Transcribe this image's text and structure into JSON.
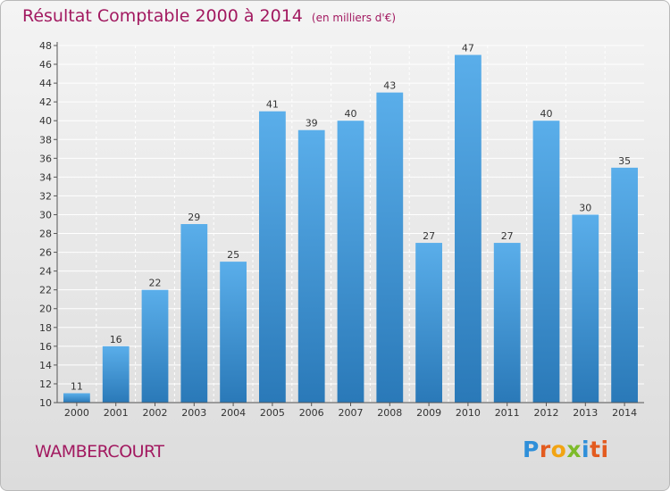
{
  "header": {
    "title": "Résultat Comptable 2000 à 2014",
    "subtitle": "(en milliers d'€)"
  },
  "commune": "WAMBERCOURT",
  "logo": {
    "letters": [
      "P",
      "r",
      "o",
      "x",
      "i",
      "ti"
    ]
  },
  "colors": {
    "title": "#a21960",
    "bar_top": "#5aaeea",
    "bar_bottom": "#2a79b8",
    "grid": "#ffffff"
  },
  "chart_data": {
    "type": "bar",
    "title": "Résultat Comptable 2000 à 2014",
    "ylabel": "en milliers d'€",
    "categories": [
      "2000",
      "2001",
      "2002",
      "2003",
      "2004",
      "2005",
      "2006",
      "2007",
      "2008",
      "2009",
      "2010",
      "2011",
      "2012",
      "2013",
      "2014"
    ],
    "values": [
      11,
      16,
      22,
      29,
      25,
      41,
      39,
      40,
      43,
      27,
      47,
      27,
      40,
      30,
      35
    ],
    "ylim": [
      10,
      48
    ],
    "yticks": [
      10,
      12,
      14,
      16,
      18,
      20,
      22,
      24,
      26,
      28,
      30,
      32,
      34,
      36,
      38,
      40,
      42,
      44,
      46,
      48
    ],
    "grid": true
  }
}
